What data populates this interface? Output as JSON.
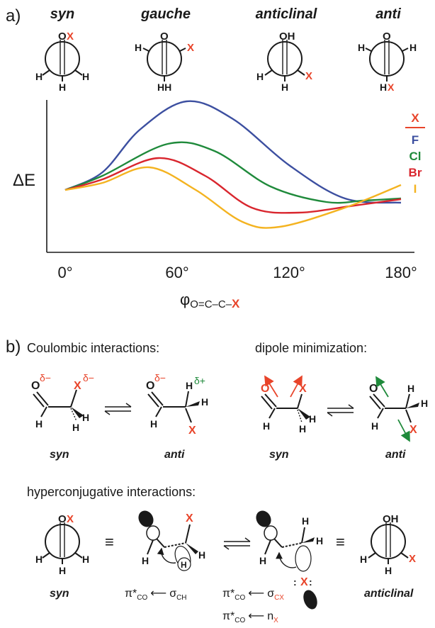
{
  "part_a": {
    "label": "a)",
    "conformers": [
      {
        "name": "syn",
        "top": "O",
        "x": "X"
      },
      {
        "name": "gauche",
        "top": "O",
        "x": "X"
      },
      {
        "name": "anticlinal",
        "top": "OH",
        "x": "X"
      },
      {
        "name": "anti",
        "top": "O",
        "x": "X"
      }
    ],
    "atoms": {
      "H": "H",
      "HH": "HH",
      "HX_H": "H",
      "HX_X": "X"
    },
    "ylabel": "ΔE",
    "xlabel_phi": "φ",
    "xlabel_sub": "O=C–C–",
    "xlabel_x": "X"
  },
  "chart_data": {
    "type": "line",
    "title": "",
    "ylabel": "ΔE",
    "xlabel": "φO=C–C–X",
    "x_ticks": [
      "0°",
      "60°",
      "120°",
      "180°"
    ],
    "xlim": [
      0,
      180
    ],
    "y_units": "arbitrary",
    "legend_title": "X",
    "legend_position": "right",
    "series": [
      {
        "name": "F",
        "color": "#3c4fa0",
        "points": [
          [
            0,
            0
          ],
          [
            20,
            0.25
          ],
          [
            40,
            0.85
          ],
          [
            65,
            1.25
          ],
          [
            90,
            1.0
          ],
          [
            120,
            0.35
          ],
          [
            150,
            -0.12
          ],
          [
            180,
            -0.18
          ]
        ]
      },
      {
        "name": "Cl",
        "color": "#1f8a3b",
        "points": [
          [
            0,
            0
          ],
          [
            20,
            0.2
          ],
          [
            55,
            0.65
          ],
          [
            80,
            0.55
          ],
          [
            110,
            0.05
          ],
          [
            140,
            -0.17
          ],
          [
            160,
            -0.15
          ],
          [
            180,
            -0.12
          ]
        ]
      },
      {
        "name": "Br",
        "color": "#d9262e",
        "points": [
          [
            0,
            0
          ],
          [
            20,
            0.15
          ],
          [
            50,
            0.45
          ],
          [
            75,
            0.2
          ],
          [
            100,
            -0.25
          ],
          [
            125,
            -0.32
          ],
          [
            155,
            -0.22
          ],
          [
            180,
            -0.13
          ]
        ]
      },
      {
        "name": "I",
        "color": "#f4b320",
        "points": [
          [
            0,
            0
          ],
          [
            20,
            0.1
          ],
          [
            45,
            0.32
          ],
          [
            70,
            0.0
          ],
          [
            95,
            -0.45
          ],
          [
            115,
            -0.52
          ],
          [
            150,
            -0.25
          ],
          [
            180,
            0.07
          ]
        ]
      }
    ]
  },
  "part_b": {
    "label": "b)",
    "coulombic_title": "Coulombic interactions:",
    "dipole_title": "dipole minimization:",
    "hyper_title": "hyperconjugative interactions:",
    "delta_minus": "δ−",
    "delta_plus": "δ+",
    "syn": "syn",
    "anti": "anti",
    "anticlinal": "anticlinal",
    "equiv": "≡",
    "pi_co": "π*",
    "co_sub": "CO",
    "sigma": "σ",
    "ch_sub": "CH",
    "cx_sub": "CX",
    "n": "n",
    "x_sub": "X",
    "arrow": "⟵"
  }
}
